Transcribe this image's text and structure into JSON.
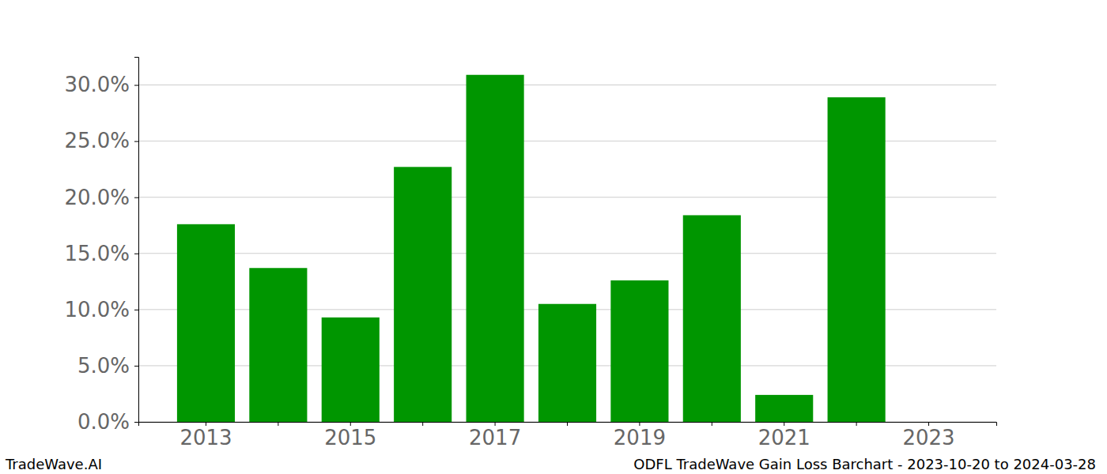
{
  "chart_data": {
    "type": "bar",
    "title": "ODFL TradeWave Gain Loss Barchart - 2023-10-20 to 2024-03-28",
    "watermark": "TradeWave.AI",
    "categories": [
      "2013",
      null,
      "2015",
      null,
      "2017",
      null,
      "2019",
      null,
      "2021",
      null,
      "2023"
    ],
    "values": [
      17.6,
      13.7,
      9.3,
      22.7,
      30.9,
      10.5,
      12.6,
      18.4,
      2.4,
      28.9,
      0
    ],
    "color": "#009600",
    "ylim": [
      0,
      32.5
    ],
    "yticks": [
      {
        "value": 0,
        "label": "0.0%"
      },
      {
        "value": 5,
        "label": "5.0%"
      },
      {
        "value": 10,
        "label": "10.0%"
      },
      {
        "value": 15,
        "label": "15.0%"
      },
      {
        "value": 20,
        "label": "20.0%"
      },
      {
        "value": 25,
        "label": "25.0%"
      },
      {
        "value": 30,
        "label": "30.0%"
      }
    ],
    "grid": true
  }
}
